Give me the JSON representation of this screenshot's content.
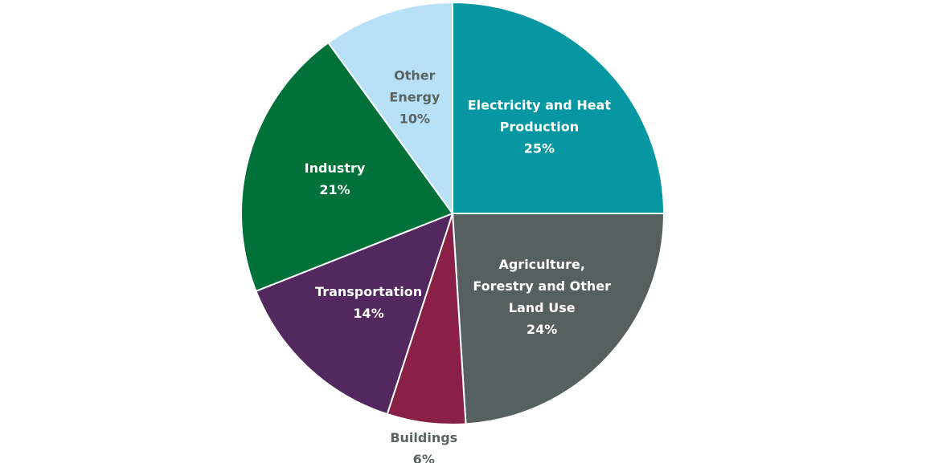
{
  "chart_data": {
    "type": "pie",
    "categories": [
      "Electricity and Heat\nProduction",
      "Agriculture,\nForestry and Other\nLand Use",
      "Buildings",
      "Transportation",
      "Industry",
      "Other\nEnergy"
    ],
    "values": [
      25,
      24,
      6,
      14,
      21,
      10
    ],
    "value_labels": [
      "25%",
      "24%",
      "6%",
      "14%",
      "21%",
      "10%"
    ],
    "colors": [
      "#0797a2",
      "#56605e",
      "#8a2045",
      "#52285e",
      "#007138",
      "#b8e0f7"
    ]
  }
}
